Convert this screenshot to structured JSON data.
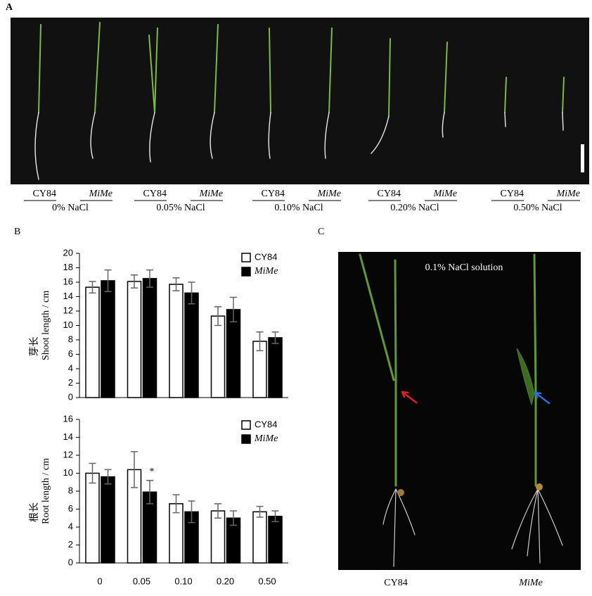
{
  "panels": {
    "A": {
      "label": "A",
      "groups": [
        {
          "left": "CY84",
          "right": "MiMe",
          "condition": "0% NaCl"
        },
        {
          "left": "CY84",
          "right": "MiMe",
          "condition": "0.05% NaCl"
        },
        {
          "left": "CY84",
          "right": "MiMe",
          "condition": "0.10% NaCl"
        },
        {
          "left": "CY84",
          "right": "MiMe",
          "condition": "0.20% NaCl"
        },
        {
          "left": "CY84",
          "right": "MiMe",
          "condition": "0.50% NaCl"
        }
      ]
    },
    "B": {
      "label": "B"
    },
    "C": {
      "label": "C",
      "annotation": "0.1% NaCl solution",
      "labels": [
        "CY84",
        "MiMe"
      ]
    }
  },
  "chart_data": [
    {
      "type": "bar",
      "ylabel_cn": "芽长",
      "ylabel": "Shoot length / cm",
      "categories": [
        null,
        null,
        null,
        null,
        null
      ],
      "series": [
        {
          "name": "CY84",
          "color": "#ffffff",
          "values": [
            15.3,
            16.1,
            15.7,
            11.3,
            7.8
          ],
          "errors": [
            0.8,
            0.9,
            0.9,
            1.3,
            1.3
          ]
        },
        {
          "name": "MiMe",
          "color": "#000000",
          "values": [
            16.2,
            16.5,
            14.5,
            12.2,
            8.3
          ],
          "errors": [
            1.5,
            1.2,
            1.5,
            1.7,
            0.8
          ]
        }
      ],
      "ylim": [
        0,
        20
      ],
      "yticks": [
        0,
        2,
        4,
        6,
        8,
        10,
        12,
        14,
        16,
        18,
        20
      ]
    },
    {
      "type": "bar",
      "ylabel_cn": "根长",
      "ylabel": "Root length / cm",
      "categories": [
        "0",
        "0.05",
        "0.10",
        "0.20",
        "0.50"
      ],
      "series": [
        {
          "name": "CY84",
          "color": "#ffffff",
          "values": [
            10.0,
            10.4,
            6.6,
            5.8,
            5.7
          ],
          "errors": [
            1.1,
            2.0,
            1.0,
            0.8,
            0.6
          ]
        },
        {
          "name": "MiMe",
          "color": "#000000",
          "values": [
            9.6,
            7.9,
            5.7,
            5.0,
            5.2
          ],
          "errors": [
            0.8,
            1.3,
            1.2,
            0.8,
            0.6
          ]
        }
      ],
      "annotation": "*",
      "ylim": [
        0,
        16
      ],
      "yticks": [
        0,
        2,
        4,
        6,
        8,
        10,
        12,
        14,
        16
      ]
    }
  ]
}
